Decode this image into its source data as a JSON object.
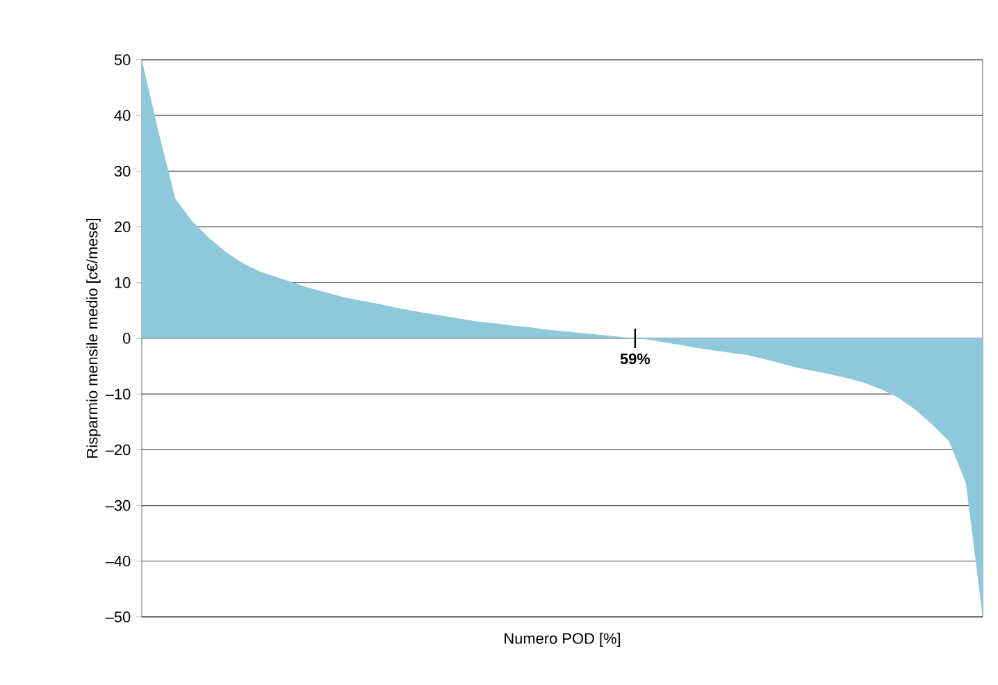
{
  "chart_data": {
    "type": "area",
    "xlabel": "Numero POD [%]",
    "ylabel": "Risparmio mensile medio [c€/mese]",
    "categories": [
      null,
      null,
      null,
      null,
      null,
      null,
      null,
      null,
      null,
      null,
      null,
      null,
      null,
      null,
      null,
      null,
      null,
      null,
      null,
      null,
      null,
      null,
      null,
      null,
      null,
      null,
      null,
      null,
      null,
      null,
      null,
      null,
      null,
      null,
      null,
      null,
      null,
      null,
      null,
      null,
      null,
      null,
      null,
      null,
      null,
      null,
      null,
      null,
      null,
      null,
      null
    ],
    "values": [
      50,
      37,
      25,
      21,
      18,
      15.5,
      13.5,
      12,
      11,
      10,
      9,
      8.2,
      7.4,
      6.8,
      6.2,
      5.6,
      5,
      4.5,
      4,
      3.5,
      3,
      2.7,
      2.3,
      2,
      1.6,
      1.3,
      1,
      0.7,
      0.4,
      0.1,
      -0.2,
      -0.7,
      -1.2,
      -1.7,
      -2.2,
      -2.6,
      -3,
      -3.7,
      -4.5,
      -5.3,
      -5.9,
      -6.5,
      -7.2,
      -8,
      -9.2,
      -10.7,
      -12.8,
      -15.5,
      -18.5,
      -26,
      -50
    ],
    "color": "#8ec8dc",
    "ylim": [
      -50,
      50
    ],
    "yticks": [
      {
        "value": -50,
        "label": "–50"
      },
      {
        "value": -40,
        "label": "–40"
      },
      {
        "value": -30,
        "label": "–30"
      },
      {
        "value": -20,
        "label": "–20"
      },
      {
        "value": -10,
        "label": "–10"
      },
      0,
      10,
      20,
      30,
      40,
      50
    ],
    "grid": "y",
    "annotations": [
      {
        "text": "59%",
        "y": 0
      }
    ]
  }
}
